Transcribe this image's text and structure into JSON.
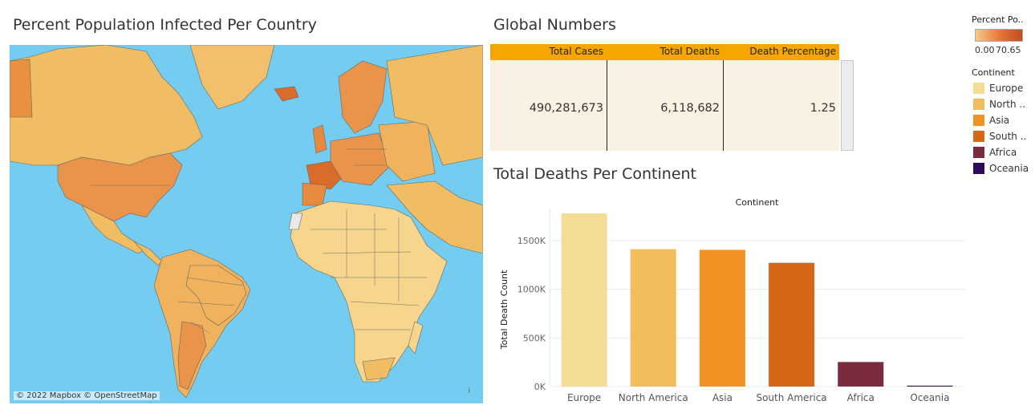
{
  "map_section": {
    "title": "Percent Population Infected Per Country",
    "attribution": "© 2022 Mapbox © OpenStreetMap",
    "info_mark": "i",
    "colors": {
      "ocean": "#74cdf0",
      "low": "#f7d58c",
      "mid": "#f0b25c",
      "high": "#e78a3e",
      "max": "#d96b2b"
    }
  },
  "global_numbers": {
    "title": "Global Numbers",
    "headers": [
      "Total Cases",
      "Total Deaths",
      "Death Percentage"
    ],
    "values": [
      "490,281,673",
      "6,118,682",
      "1.25"
    ],
    "header_color": "#f7a600",
    "body_color": "#f9f1e2"
  },
  "legend": {
    "percent_title": "Percent Po..",
    "percent_min": "0.00",
    "percent_max": "70.65",
    "continent_title": "Continent",
    "items": [
      {
        "label": "Europe",
        "color": "#f5dc95"
      },
      {
        "label": "North ..",
        "color": "#f3bd5e"
      },
      {
        "label": "Asia",
        "color": "#f19222"
      },
      {
        "label": "South ..",
        "color": "#d56716"
      },
      {
        "label": "Africa",
        "color": "#7a2b3d"
      },
      {
        "label": "Oceania",
        "color": "#2d0a5c"
      }
    ]
  },
  "bar_section": {
    "title": "Total Deaths Per Continent"
  },
  "chart_data": {
    "type": "bar",
    "title": "Total Deaths Per Continent",
    "header": "Continent",
    "xlabel": "",
    "ylabel": "Total Death Count",
    "categories": [
      "Europe",
      "North America",
      "Asia",
      "South America",
      "Africa",
      "Oceania"
    ],
    "values": [
      1780000,
      1412000,
      1405000,
      1272000,
      252000,
      9000
    ],
    "colors": [
      "#f5dc95",
      "#f3bd5e",
      "#f19222",
      "#d56716",
      "#7a2b3d",
      "#2d0a5c"
    ],
    "yticks": [
      0,
      500000,
      1000000,
      1500000
    ],
    "ytick_labels": [
      "0K",
      "500K",
      "1000K",
      "1500K"
    ],
    "ylim": [
      0,
      1830000
    ],
    "grid": true
  }
}
